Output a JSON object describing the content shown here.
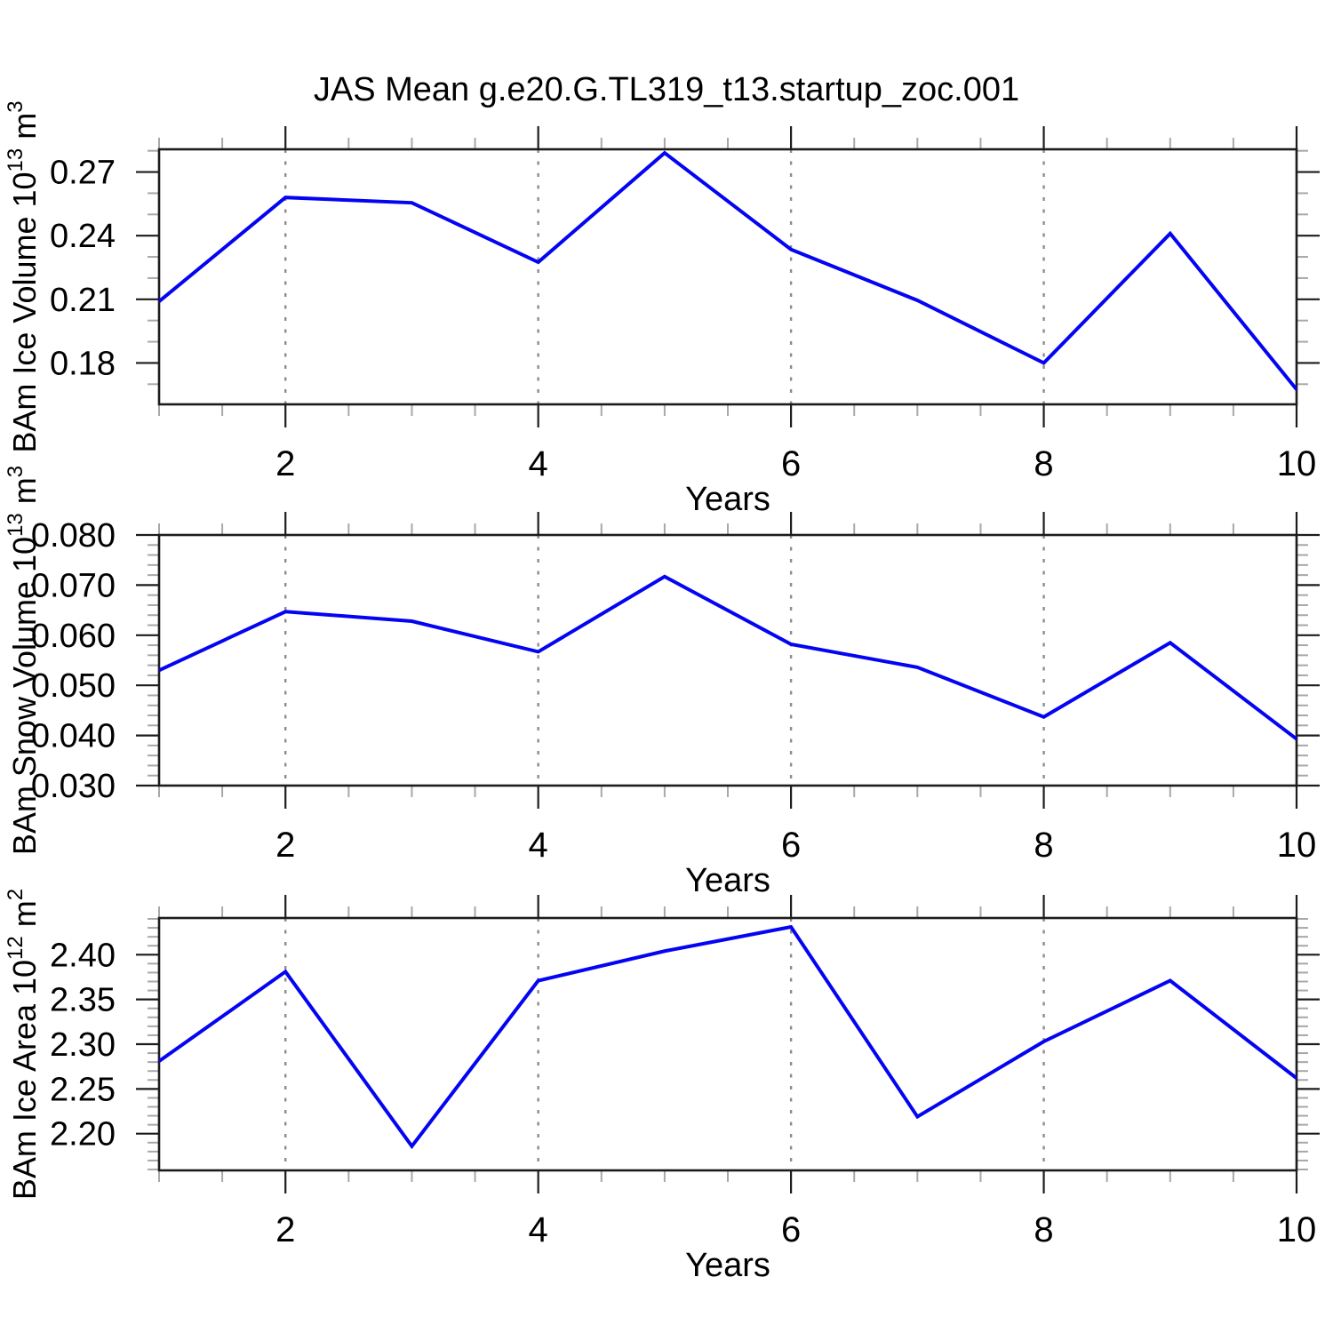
{
  "figure": {
    "title": "JAS Mean g.e20.G.TL319_t13.startup_zoc.001",
    "background": "#ffffff"
  },
  "colors": {
    "line": "#0404f2",
    "spine": "#1c1c1c",
    "major_tick": "#1c1c1c",
    "minor_tick": "#a8a8a8",
    "gridline": "#8c8c8c",
    "text": "#000000"
  },
  "chart_data": [
    {
      "type": "line",
      "name": "ice-volume",
      "xlabel": "Years",
      "ylabel": "BAm Ice Volume 10^13 m^3",
      "ylabel_parts": [
        {
          "t": "BAm Ice Volume 10"
        },
        {
          "t": "13",
          "sup": true
        },
        {
          "t": " m"
        },
        {
          "t": "3",
          "sup": true
        }
      ],
      "series": [
        {
          "name": "BAm Ice Volume",
          "x": [
            1,
            2,
            3,
            4,
            5,
            6,
            7,
            8,
            9,
            10
          ],
          "y": [
            0.209,
            0.258,
            0.2555,
            0.2275,
            0.279,
            0.2335,
            0.2095,
            0.18,
            0.241,
            0.1675
          ]
        }
      ],
      "xlim": [
        1,
        10
      ],
      "ylim": [
        0.1605,
        0.2807
      ],
      "xticks": [
        {
          "v": 2,
          "label": "2"
        },
        {
          "v": 4,
          "label": "4"
        },
        {
          "v": 6,
          "label": "6"
        },
        {
          "v": 8,
          "label": "8"
        },
        {
          "v": 10,
          "label": "10"
        }
      ],
      "yticks": [
        {
          "v": 0.18,
          "label": "0.18"
        },
        {
          "v": 0.21,
          "label": "0.21"
        },
        {
          "v": 0.24,
          "label": "0.24"
        },
        {
          "v": 0.27,
          "label": "0.27"
        }
      ],
      "x_minor_step": 0.5,
      "y_minor_step": 0.01,
      "grid_x": [
        2,
        4,
        6,
        8
      ],
      "grid_style": "dashed-vertical",
      "legend": "none"
    },
    {
      "type": "line",
      "name": "snow-volume",
      "xlabel": "Years",
      "ylabel": "BAm Snow Volume 10^13 m^3",
      "ylabel_parts": [
        {
          "t": "BAm Snow Volume 10"
        },
        {
          "t": "13",
          "sup": true
        },
        {
          "t": " m"
        },
        {
          "t": "3",
          "sup": true
        }
      ],
      "series": [
        {
          "name": "BAm Snow Volume",
          "x": [
            1,
            2,
            3,
            4,
            5,
            6,
            7,
            8,
            9,
            10
          ],
          "y": [
            0.053,
            0.0647,
            0.0628,
            0.0567,
            0.0717,
            0.0582,
            0.0536,
            0.0437,
            0.0585,
            0.0393
          ]
        }
      ],
      "xlim": [
        1,
        10
      ],
      "ylim": [
        0.03,
        0.08
      ],
      "xticks": [
        {
          "v": 2,
          "label": "2"
        },
        {
          "v": 4,
          "label": "4"
        },
        {
          "v": 6,
          "label": "6"
        },
        {
          "v": 8,
          "label": "8"
        },
        {
          "v": 10,
          "label": "10"
        }
      ],
      "yticks": [
        {
          "v": 0.03,
          "label": "0.030"
        },
        {
          "v": 0.04,
          "label": "0.040"
        },
        {
          "v": 0.05,
          "label": "0.050"
        },
        {
          "v": 0.06,
          "label": "0.060"
        },
        {
          "v": 0.07,
          "label": "0.070"
        },
        {
          "v": 0.08,
          "label": "0.080"
        }
      ],
      "x_minor_step": 0.5,
      "y_minor_step": 0.002,
      "grid_x": [
        2,
        4,
        6,
        8
      ],
      "grid_style": "dashed-vertical",
      "legend": "none"
    },
    {
      "type": "line",
      "name": "ice-area",
      "xlabel": "Years",
      "ylabel": "BAm Ice Area 10^12 m^2",
      "ylabel_parts": [
        {
          "t": "BAm Ice Area 10"
        },
        {
          "t": "12",
          "sup": true
        },
        {
          "t": " m"
        },
        {
          "t": "2",
          "sup": true
        }
      ],
      "series": [
        {
          "name": "BAm Ice Area",
          "x": [
            1,
            2,
            3,
            4,
            5,
            6,
            7,
            8,
            9,
            10
          ],
          "y": [
            2.281,
            2.381,
            2.186,
            2.371,
            2.404,
            2.431,
            2.219,
            2.303,
            2.371,
            2.262
          ]
        }
      ],
      "xlim": [
        1,
        10
      ],
      "ylim": [
        2.159,
        2.441
      ],
      "xticks": [
        {
          "v": 2,
          "label": "2"
        },
        {
          "v": 4,
          "label": "4"
        },
        {
          "v": 6,
          "label": "6"
        },
        {
          "v": 8,
          "label": "8"
        },
        {
          "v": 10,
          "label": "10"
        }
      ],
      "yticks": [
        {
          "v": 2.2,
          "label": "2.20"
        },
        {
          "v": 2.25,
          "label": "2.25"
        },
        {
          "v": 2.3,
          "label": "2.30"
        },
        {
          "v": 2.35,
          "label": "2.35"
        },
        {
          "v": 2.4,
          "label": "2.40"
        }
      ],
      "x_minor_step": 0.5,
      "y_minor_step": 0.01,
      "grid_x": [
        2,
        4,
        6,
        8
      ],
      "grid_style": "dashed-vertical",
      "legend": "none"
    }
  ]
}
